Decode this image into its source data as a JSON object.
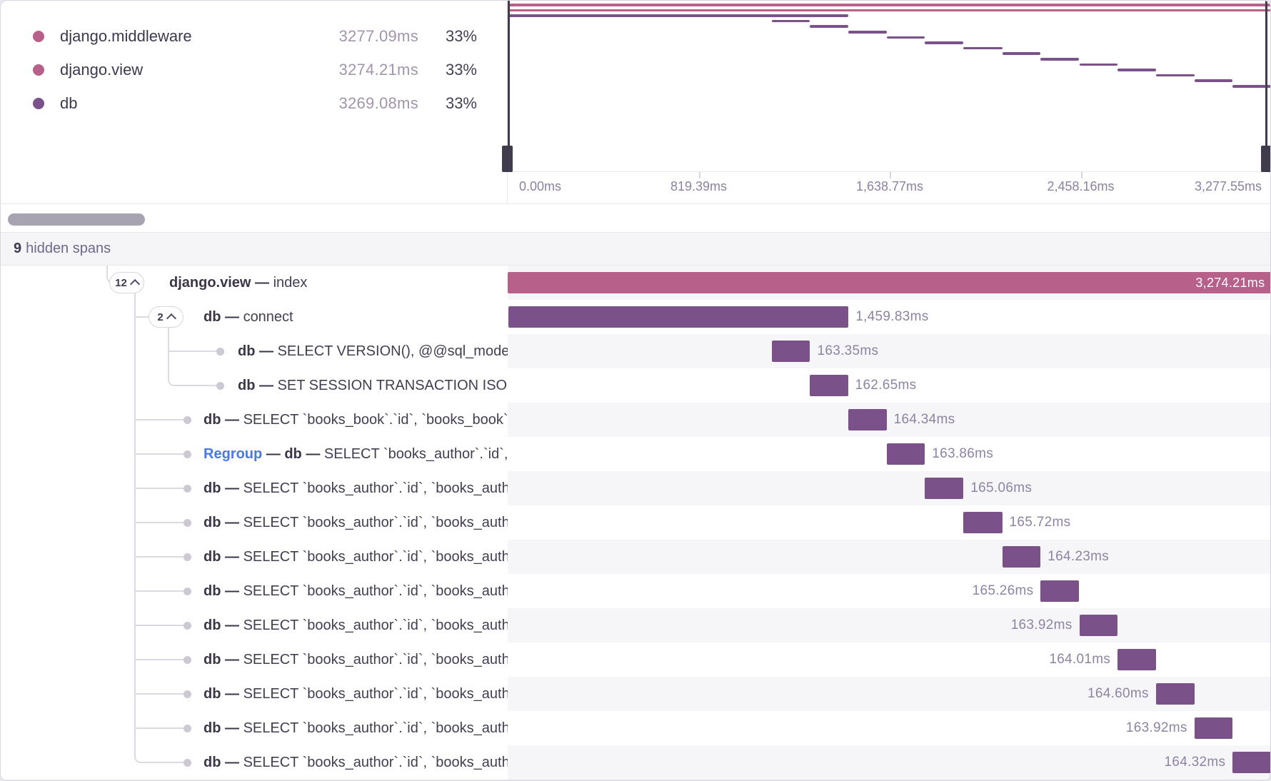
{
  "colors": {
    "pink": "#b7608a",
    "purple": "#7b5189",
    "bar_label": "#8e83a3",
    "axis_label": "#8c81a0",
    "row_alt_bg": "#f6f6f9",
    "hidden_row_bg": "#f5f5f8",
    "brush": "#413b4e",
    "connector": "#dddae3",
    "link_blue": "#4a79e0"
  },
  "legend": {
    "items": [
      {
        "name": "django.middleware",
        "duration": "3277.09ms",
        "percent": "33%",
        "color": "pink"
      },
      {
        "name": "django.view",
        "duration": "3274.21ms",
        "percent": "33%",
        "color": "pink"
      },
      {
        "name": "db",
        "duration": "3269.08ms",
        "percent": "33%",
        "color": "purple"
      }
    ]
  },
  "waterfall": {
    "total_ms": 3277.55,
    "axis_labels": [
      {
        "text": "0.00ms",
        "pct": 0
      },
      {
        "text": "819.39ms",
        "pct": 25
      },
      {
        "text": "1,638.77ms",
        "pct": 50
      },
      {
        "text": "2,458.16ms",
        "pct": 75
      },
      {
        "text": "3,277.55ms",
        "pct": 100
      }
    ]
  },
  "minimap": {
    "spans": [
      {
        "color": "pink",
        "start": 0,
        "dur": 3277.09
      },
      {
        "color": "pink",
        "start": 1.5,
        "dur": 3274.21
      },
      {
        "color": "purple",
        "start": 2,
        "dur": 1459.83
      },
      {
        "color": "purple",
        "start": 1133.8,
        "dur": 163.35
      },
      {
        "color": "purple",
        "start": 1297.2,
        "dur": 162.65
      },
      {
        "color": "purple",
        "start": 1461.0,
        "dur": 164.34
      },
      {
        "color": "purple",
        "start": 1625.8,
        "dur": 163.86
      },
      {
        "color": "purple",
        "start": 1790.1,
        "dur": 165.06
      },
      {
        "color": "purple",
        "start": 1955.6,
        "dur": 165.72
      },
      {
        "color": "purple",
        "start": 2121.7,
        "dur": 164.23
      },
      {
        "color": "purple",
        "start": 2286.4,
        "dur": 165.26
      },
      {
        "color": "purple",
        "start": 2452.1,
        "dur": 163.92
      },
      {
        "color": "purple",
        "start": 2616.4,
        "dur": 164.01
      },
      {
        "color": "purple",
        "start": 2780.8,
        "dur": 164.6
      },
      {
        "color": "purple",
        "start": 2945.8,
        "dur": 163.92
      },
      {
        "color": "purple",
        "start": 3110.1,
        "dur": 164.32
      }
    ]
  },
  "hidden": {
    "count": "9",
    "label": "hidden spans"
  },
  "rows": [
    {
      "kind": "root",
      "badge": "12",
      "parts": [
        {
          "t": "django.view",
          "b": true
        },
        {
          "t": " — ",
          "b": true
        },
        {
          "t": "index"
        }
      ],
      "duration": "3,274.21ms",
      "bar": {
        "start": 1.5,
        "dur": 3274.21,
        "color": "pink",
        "label": "inside"
      }
    },
    {
      "kind": "child",
      "badge": "2",
      "parts": [
        {
          "t": "db",
          "b": true
        },
        {
          "t": " — ",
          "b": true
        },
        {
          "t": "connect"
        }
      ],
      "duration": "1,459.83ms",
      "bar": {
        "start": 2,
        "dur": 1459.83,
        "color": "purple",
        "label": "right"
      }
    },
    {
      "kind": "leaf-deep",
      "parts": [
        {
          "t": "db",
          "b": true
        },
        {
          "t": " — ",
          "b": true
        },
        {
          "t": "SELECT VERSION(), @@sql_mode"
        }
      ],
      "duration": "163.35ms",
      "bar": {
        "start": 1133.8,
        "dur": 163.35,
        "color": "purple",
        "label": "right"
      }
    },
    {
      "kind": "leaf-deep",
      "parts": [
        {
          "t": "db",
          "b": true
        },
        {
          "t": " — ",
          "b": true
        },
        {
          "t": "SET SESSION TRANSACTION ISOLATION"
        }
      ],
      "duration": "162.65ms",
      "bar": {
        "start": 1297.2,
        "dur": 162.65,
        "color": "purple",
        "label": "right"
      }
    },
    {
      "kind": "leaf",
      "parts": [
        {
          "t": "db",
          "b": true
        },
        {
          "t": " — ",
          "b": true
        },
        {
          "t": "SELECT `books_book`.`id`, `books_book`"
        }
      ],
      "duration": "164.34ms",
      "bar": {
        "start": 1461.0,
        "dur": 164.34,
        "color": "purple",
        "label": "right"
      }
    },
    {
      "kind": "leaf",
      "parts": [
        {
          "t": "Regroup",
          "link": true
        },
        {
          "t": " — ",
          "b": true
        },
        {
          "t": "db",
          "b": true
        },
        {
          "t": " — ",
          "b": true
        },
        {
          "t": "SELECT `books_author`.`id`, `books_author`"
        }
      ],
      "duration": "163.86ms",
      "bar": {
        "start": 1625.8,
        "dur": 163.86,
        "color": "purple",
        "label": "right"
      }
    },
    {
      "kind": "leaf",
      "parts": [
        {
          "t": "db",
          "b": true
        },
        {
          "t": " — ",
          "b": true
        },
        {
          "t": "SELECT `books_author`.`id`, `books_author`"
        }
      ],
      "duration": "165.06ms",
      "bar": {
        "start": 1790.1,
        "dur": 165.06,
        "color": "purple",
        "label": "right"
      }
    },
    {
      "kind": "leaf",
      "parts": [
        {
          "t": "db",
          "b": true
        },
        {
          "t": " — ",
          "b": true
        },
        {
          "t": "SELECT `books_author`.`id`, `books_author`"
        }
      ],
      "duration": "165.72ms",
      "bar": {
        "start": 1955.6,
        "dur": 165.72,
        "color": "purple",
        "label": "right"
      }
    },
    {
      "kind": "leaf",
      "parts": [
        {
          "t": "db",
          "b": true
        },
        {
          "t": " — ",
          "b": true
        },
        {
          "t": "SELECT `books_author`.`id`, `books_author`"
        }
      ],
      "duration": "164.23ms",
      "bar": {
        "start": 2121.7,
        "dur": 164.23,
        "color": "purple",
        "label": "right"
      }
    },
    {
      "kind": "leaf",
      "parts": [
        {
          "t": "db",
          "b": true
        },
        {
          "t": " — ",
          "b": true
        },
        {
          "t": "SELECT `books_author`.`id`, `books_author`"
        }
      ],
      "duration": "165.26ms",
      "bar": {
        "start": 2286.4,
        "dur": 165.26,
        "color": "purple",
        "label": "left"
      }
    },
    {
      "kind": "leaf",
      "parts": [
        {
          "t": "db",
          "b": true
        },
        {
          "t": " — ",
          "b": true
        },
        {
          "t": "SELECT `books_author`.`id`, `books_author`"
        }
      ],
      "duration": "163.92ms",
      "bar": {
        "start": 2452.1,
        "dur": 163.92,
        "color": "purple",
        "label": "left"
      }
    },
    {
      "kind": "leaf",
      "parts": [
        {
          "t": "db",
          "b": true
        },
        {
          "t": " — ",
          "b": true
        },
        {
          "t": "SELECT `books_author`.`id`, `books_author`"
        }
      ],
      "duration": "164.01ms",
      "bar": {
        "start": 2616.4,
        "dur": 164.01,
        "color": "purple",
        "label": "left"
      }
    },
    {
      "kind": "leaf",
      "parts": [
        {
          "t": "db",
          "b": true
        },
        {
          "t": " — ",
          "b": true
        },
        {
          "t": "SELECT `books_author`.`id`, `books_author`"
        }
      ],
      "duration": "164.60ms",
      "bar": {
        "start": 2780.8,
        "dur": 164.6,
        "color": "purple",
        "label": "left"
      }
    },
    {
      "kind": "leaf",
      "parts": [
        {
          "t": "db",
          "b": true
        },
        {
          "t": " — ",
          "b": true
        },
        {
          "t": "SELECT `books_author`.`id`, `books_author`"
        }
      ],
      "duration": "163.92ms",
      "bar": {
        "start": 2945.8,
        "dur": 163.92,
        "color": "purple",
        "label": "left"
      }
    },
    {
      "kind": "leaf",
      "parts": [
        {
          "t": "db",
          "b": true
        },
        {
          "t": " — ",
          "b": true
        },
        {
          "t": "SELECT `books_author`.`id`, `books_author`"
        }
      ],
      "duration": "164.32ms",
      "bar": {
        "start": 3110.1,
        "dur": 164.32,
        "color": "purple",
        "label": "left"
      }
    }
  ]
}
